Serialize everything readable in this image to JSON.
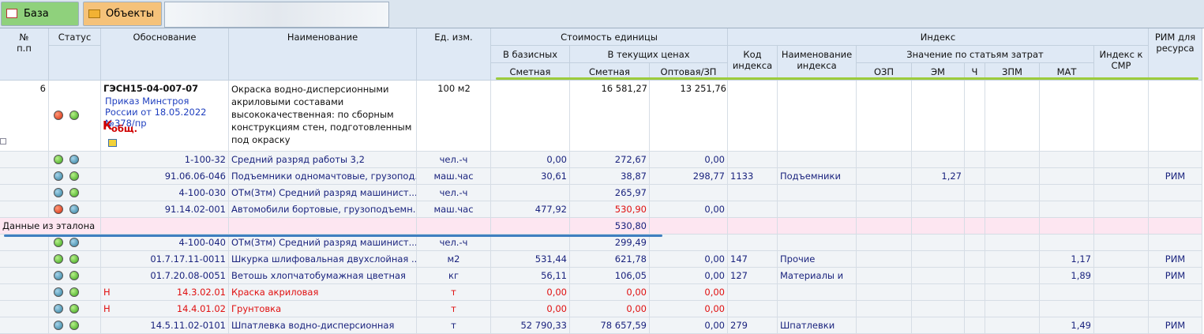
{
  "tabs": [
    "База",
    "Объекты"
  ],
  "header": {
    "num": "№\nп.п",
    "status": "Статус",
    "basis": "Обоснование",
    "name": "Наименование",
    "unit": "Ед. изм.",
    "unit_cost": "Стоимость единицы",
    "base": "В базисных",
    "current": "В текущих ценах",
    "est_base": "Сметная",
    "est_current": "Сметная",
    "wholesale": "Оптовая/ЗП",
    "index": "Индекс",
    "index_code": "Код индекса",
    "index_name": "Наименование индекса",
    "by_cost": "Значение по статьям затрат",
    "ozp": "ОЗП",
    "em": "ЭМ",
    "ch": "Ч",
    "zpm": "ЗПМ",
    "mat": "МАТ",
    "smr": "Индекс к СМР",
    "rim": "РИМ для ресурса"
  },
  "main": {
    "number": "6",
    "code": "ГЭСН15-04-007-07",
    "order": "Приказ Минстроя России от 18.05.2022 №378/пр",
    "coef": "К",
    "coef_sub": "общ.",
    "name": "Окраска водно-дисперсионными акриловыми составами высококачественная: по сборным конструкциям стен, подготовленным под окраску",
    "unit": "100 м2",
    "current_estimate": "16 581,27",
    "wholesale": "13 251,76"
  },
  "rows": [
    {
      "cells": [
        null,
        null,
        "1-100-32",
        "Средний разряд работы 3,2",
        "чел.-ч",
        "0,00",
        "272,67",
        "0,00",
        null,
        null,
        null,
        null,
        null,
        null,
        null,
        null,
        null
      ]
    },
    {
      "cells": [
        null,
        null,
        "91.06.06-046",
        "Подъемники одномачтовые, грузопод...",
        "маш.час",
        "30,61",
        "38,87",
        "298,77",
        "1133",
        "Подъемники",
        null,
        "1,27",
        null,
        null,
        null,
        null,
        "РИМ"
      ]
    },
    {
      "cells": [
        null,
        null,
        "4-100-030",
        "ОТм(Зтм) Средний разряд машинист...",
        "чел.-ч",
        null,
        "265,97",
        null,
        null,
        null,
        null,
        null,
        null,
        null,
        null,
        null,
        null
      ]
    },
    {
      "cells": [
        null,
        null,
        "91.14.02-001",
        "Автомобили бортовые, грузоподъемн...",
        "маш.час",
        "477,92",
        "530,90",
        "0,00",
        null,
        null,
        null,
        null,
        null,
        null,
        null,
        null,
        null
      ]
    },
    {
      "cells": [
        "Данные из эталона",
        null,
        null,
        null,
        null,
        null,
        "530,80",
        null,
        null,
        null,
        null,
        null,
        null,
        null,
        null,
        null,
        null
      ]
    },
    {
      "cells": [
        null,
        null,
        "4-100-040",
        "ОТм(Зтм) Средний разряд машинист...",
        "чел.-ч",
        null,
        "299,49",
        null,
        null,
        null,
        null,
        null,
        null,
        null,
        null,
        null,
        null
      ]
    },
    {
      "cells": [
        null,
        null,
        "01.7.17.11-0011",
        "Шкурка шлифовальная двухслойная ...",
        "м2",
        "531,44",
        "621,78",
        "0,00",
        "147",
        "Прочие",
        null,
        null,
        null,
        null,
        "1,17",
        null,
        "РИМ"
      ]
    },
    {
      "cells": [
        null,
        null,
        "01.7.20.08-0051",
        "Ветошь хлопчатобумажная цветная",
        "кг",
        "56,11",
        "106,05",
        "0,00",
        "127",
        "Материалы и",
        null,
        null,
        null,
        null,
        "1,89",
        null,
        "РИМ"
      ]
    },
    {
      "flag": "Н",
      "cells": [
        null,
        null,
        "14.3.02.01",
        "Краска акриловая",
        "т",
        "0,00",
        "0,00",
        "0,00",
        null,
        null,
        null,
        null,
        null,
        null,
        null,
        null,
        null
      ]
    },
    {
      "flag": "Н",
      "cells": [
        null,
        null,
        "14.4.01.02",
        "Грунтовка",
        "т",
        "0,00",
        "0,00",
        "0,00",
        null,
        null,
        null,
        null,
        null,
        null,
        null,
        null,
        null
      ]
    },
    {
      "cells": [
        null,
        null,
        "14.5.11.02-0101",
        "Шпатлевка водно-дисперсионная",
        "т",
        "52 790,33",
        "78 657,59",
        "0,00",
        "279",
        "Шпатлевки",
        null,
        null,
        null,
        null,
        "1,49",
        null,
        "РИМ"
      ]
    }
  ]
}
